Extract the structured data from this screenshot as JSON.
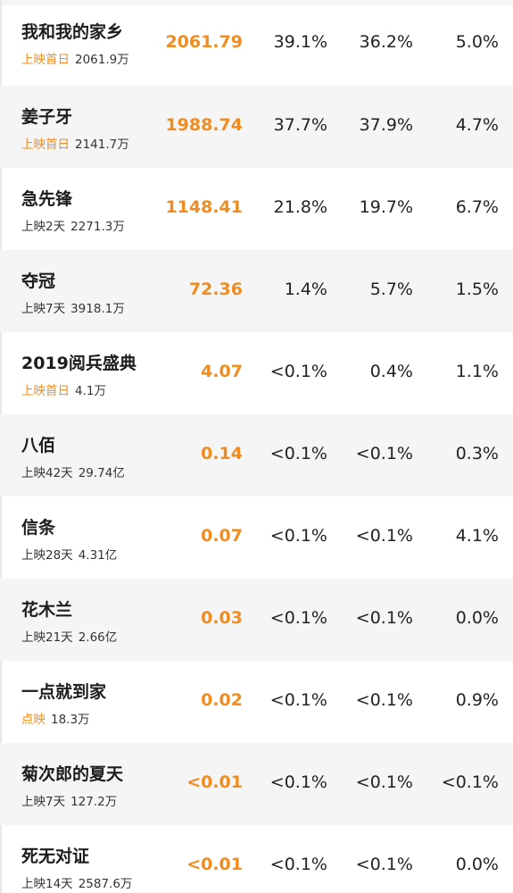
{
  "rows": [
    {
      "name": "我和我的家乡",
      "status": "上映首日",
      "status_color": "#f28c1e",
      "total": "2061.9万",
      "box": "2061.79",
      "c1": "39.1%",
      "c2": "36.2%",
      "c3": "5.0%"
    },
    {
      "name": "姜子牙",
      "status": "上映首日",
      "status_color": "#f28c1e",
      "total": "2141.7万",
      "box": "1988.74",
      "c1": "37.7%",
      "c2": "37.9%",
      "c3": "4.7%"
    },
    {
      "name": "急先锋",
      "status": "上映2天",
      "status_color": "#333333",
      "total": "2271.3万",
      "box": "1148.41",
      "c1": "21.8%",
      "c2": "19.7%",
      "c3": "6.7%"
    },
    {
      "name": "夺冠",
      "status": "上映7天",
      "status_color": "#333333",
      "total": "3918.1万",
      "box": "72.36",
      "c1": "1.4%",
      "c2": "5.7%",
      "c3": "1.5%"
    },
    {
      "name": "2019阅兵盛典",
      "status": "上映首日",
      "status_color": "#f28c1e",
      "total": "4.1万",
      "box": "4.07",
      "c1": "<0.1%",
      "c2": "0.4%",
      "c3": "1.1%"
    },
    {
      "name": "八佰",
      "status": "上映42天",
      "status_color": "#333333",
      "total": "29.74亿",
      "box": "0.14",
      "c1": "<0.1%",
      "c2": "<0.1%",
      "c3": "0.3%"
    },
    {
      "name": "信条",
      "status": "上映28天",
      "status_color": "#333333",
      "total": "4.31亿",
      "box": "0.07",
      "c1": "<0.1%",
      "c2": "<0.1%",
      "c3": "4.1%"
    },
    {
      "name": "花木兰",
      "status": "上映21天",
      "status_color": "#333333",
      "total": "2.66亿",
      "box": "0.03",
      "c1": "<0.1%",
      "c2": "<0.1%",
      "c3": "0.0%"
    },
    {
      "name": "一点就到家",
      "status": "点映",
      "status_color": "#f28c1e",
      "total": "18.3万",
      "box": "0.02",
      "c1": "<0.1%",
      "c2": "<0.1%",
      "c3": "0.9%"
    },
    {
      "name": "菊次郎的夏天",
      "status": "上映7天",
      "status_color": "#333333",
      "total": "127.2万",
      "box": "<0.01",
      "c1": "<0.1%",
      "c2": "<0.1%",
      "c3": "<0.1%"
    },
    {
      "name": "死无对证",
      "status": "上映14天",
      "status_color": "#333333",
      "total": "2587.6万",
      "box": "<0.01",
      "c1": "<0.1%",
      "c2": "<0.1%",
      "c3": "0.0%"
    }
  ]
}
